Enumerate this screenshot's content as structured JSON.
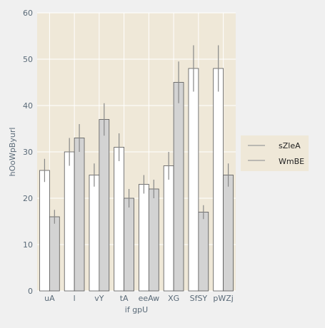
{
  "chart_data": {
    "type": "bar",
    "title": "",
    "xlabel": "if gpU",
    "ylabel": "hOoWpByurl",
    "ylim": [
      0,
      60
    ],
    "yticks": [
      0,
      10,
      20,
      30,
      40,
      50,
      60
    ],
    "grid": true,
    "legend_position": "right",
    "categories": [
      "uA",
      "l",
      "vY",
      "tA",
      "eeAw",
      "XG",
      "SfSY",
      "pWZj"
    ],
    "series": [
      {
        "name": "sZleA",
        "color": "#ffffff",
        "values": [
          26,
          30,
          25,
          31,
          23,
          27,
          48,
          48
        ],
        "errors": [
          2.5,
          3,
          2.5,
          3,
          2,
          3,
          5,
          5
        ]
      },
      {
        "name": "WmBE",
        "color": "#d3d3d3",
        "values": [
          16,
          33,
          37,
          20,
          22,
          45,
          17,
          25
        ],
        "errors": [
          1.5,
          3,
          3.5,
          2,
          2,
          4.5,
          1.5,
          2.5
        ]
      }
    ],
    "colors": {
      "plot_background": "#efe8d8",
      "figure_background": "#f0f0f0",
      "grid": "#ffffff",
      "bar_edge": "#555555",
      "error_bar": "#888888"
    }
  }
}
